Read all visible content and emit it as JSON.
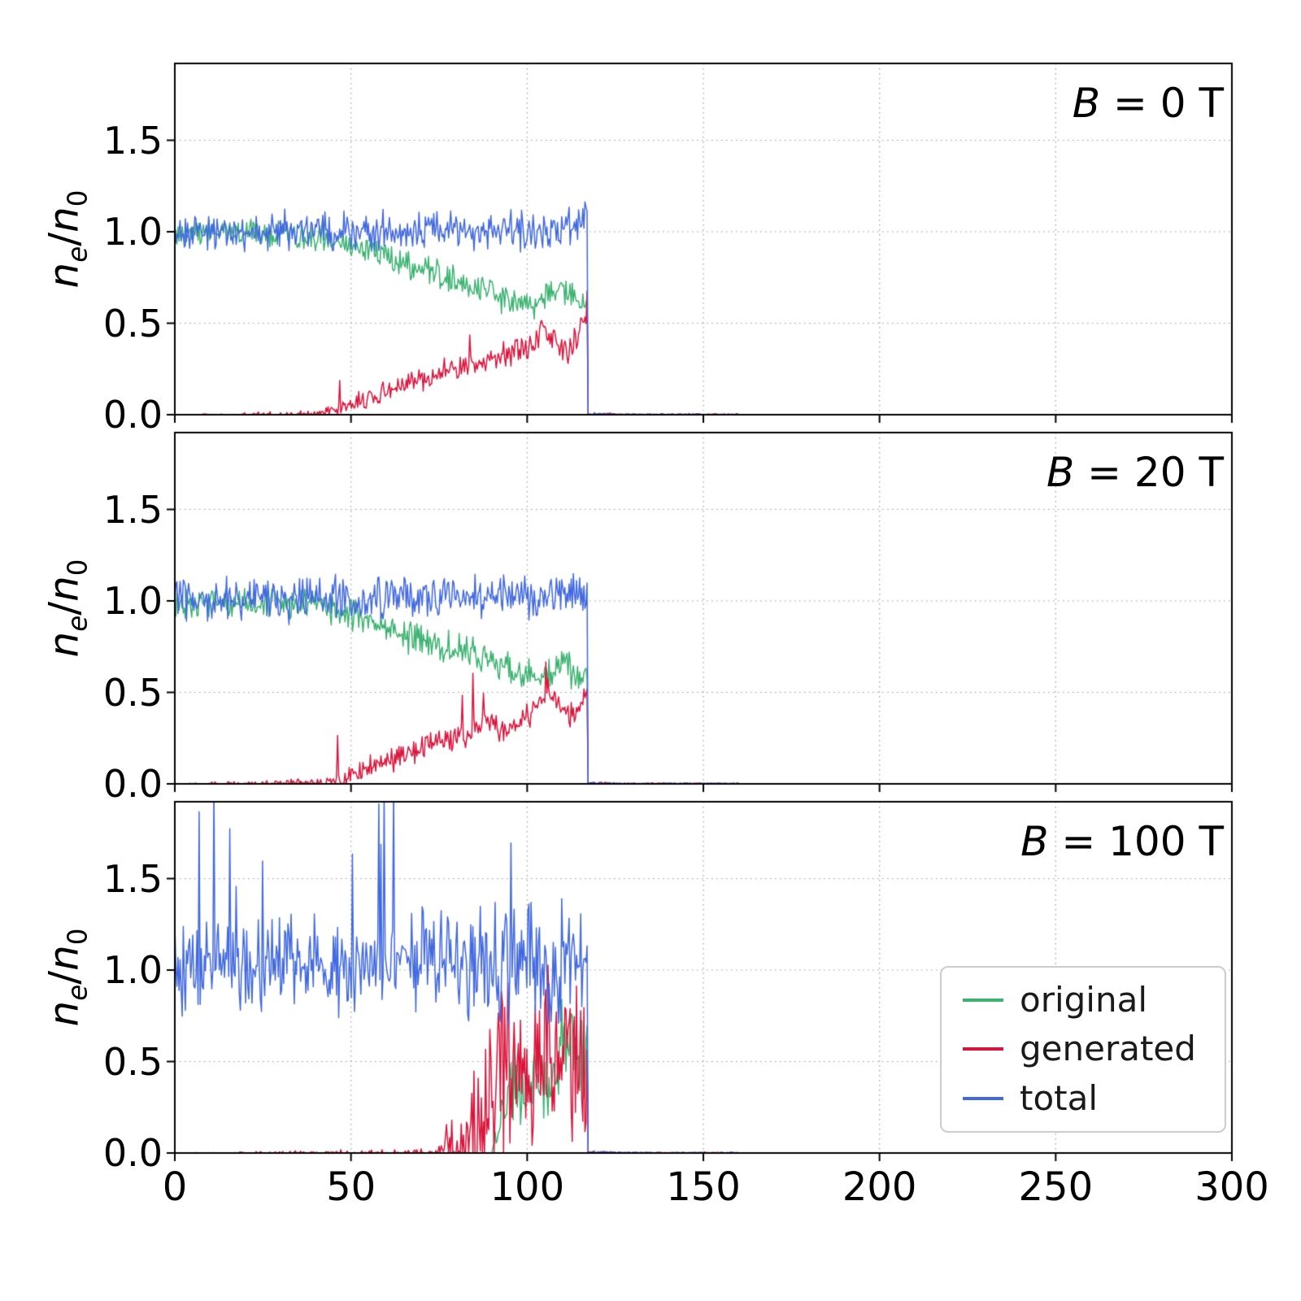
{
  "figure": {
    "background": "#ffffff"
  },
  "chart_data": {
    "type": "line",
    "title": "",
    "xlabel": "",
    "ylabel": "n_e/n_0",
    "ylabel_parts": {
      "n1": "n",
      "sub1": "e",
      "slash": "/",
      "n2": "n",
      "sub2": "0"
    },
    "xlim": [
      0,
      300
    ],
    "ylim": [
      0,
      1.92
    ],
    "x_ticks": [
      0,
      50,
      100,
      150,
      200,
      250,
      300
    ],
    "x_tick_labels": [
      "0",
      "50",
      "100",
      "150",
      "200",
      "250",
      "300"
    ],
    "y_ticks": [
      0.0,
      0.5,
      1.0,
      1.5
    ],
    "y_tick_labels": [
      "0.0",
      "0.5",
      "1.0",
      "1.5"
    ],
    "grid": "dotted",
    "cutoff_x": 117,
    "sample_step": 0.3,
    "legend": {
      "position": "lower right",
      "items": [
        {
          "label": "original",
          "color": "#3cb371"
        },
        {
          "label": "generated",
          "color": "#dc143c"
        },
        {
          "label": "total",
          "color": "#4169e1"
        }
      ]
    },
    "panels": [
      {
        "label_symbol": "B",
        "label_rest": " = 0 T",
        "series": [
          {
            "name": "original",
            "color": "#3cb371",
            "seed": 101,
            "tail": false,
            "mean": [
              [
                0,
                1.0
              ],
              [
                30,
                0.99
              ],
              [
                42,
                0.97
              ],
              [
                50,
                0.92
              ],
              [
                58,
                0.87
              ],
              [
                66,
                0.82
              ],
              [
                74,
                0.77
              ],
              [
                82,
                0.72
              ],
              [
                88,
                0.68
              ],
              [
                94,
                0.63
              ],
              [
                100,
                0.6
              ],
              [
                104,
                0.63
              ],
              [
                108,
                0.7
              ],
              [
                112,
                0.66
              ],
              [
                115,
                0.6
              ],
              [
                117,
                0.58
              ]
            ],
            "amp": [
              [
                0,
                0.065
              ],
              [
                117,
                0.065
              ]
            ]
          },
          {
            "name": "generated",
            "color": "#dc143c",
            "seed": 102,
            "tail": true,
            "spike_p": 0.008,
            "spike_h": 0.12,
            "mean": [
              [
                0,
                0
              ],
              [
                38,
                0
              ],
              [
                44,
                0.02
              ],
              [
                50,
                0.06
              ],
              [
                56,
                0.1
              ],
              [
                62,
                0.14
              ],
              [
                68,
                0.18
              ],
              [
                74,
                0.22
              ],
              [
                80,
                0.26
              ],
              [
                86,
                0.28
              ],
              [
                92,
                0.31
              ],
              [
                97,
                0.34
              ],
              [
                102,
                0.4
              ],
              [
                105,
                0.46
              ],
              [
                108,
                0.4
              ],
              [
                111,
                0.34
              ],
              [
                114,
                0.4
              ],
              [
                117,
                0.55
              ]
            ],
            "amp": [
              [
                0,
                0
              ],
              [
                42,
                0.02
              ],
              [
                50,
                0.045
              ],
              [
                117,
                0.06
              ]
            ]
          },
          {
            "name": "total",
            "color": "#4169e1",
            "seed": 103,
            "tail": true,
            "mean": [
              [
                0,
                1.0
              ],
              [
                110,
                1.01
              ],
              [
                115,
                1.04
              ],
              [
                117,
                1.05
              ]
            ],
            "amp": [
              [
                0,
                0.085
              ],
              [
                117,
                0.085
              ]
            ]
          }
        ]
      },
      {
        "label_symbol": "B",
        "label_rest": " = 20 T",
        "series": [
          {
            "name": "original",
            "color": "#3cb371",
            "seed": 201,
            "tail": false,
            "mean": [
              [
                0,
                1.0
              ],
              [
                40,
                0.98
              ],
              [
                48,
                0.94
              ],
              [
                56,
                0.88
              ],
              [
                64,
                0.83
              ],
              [
                72,
                0.78
              ],
              [
                80,
                0.73
              ],
              [
                86,
                0.69
              ],
              [
                92,
                0.65
              ],
              [
                98,
                0.61
              ],
              [
                103,
                0.57
              ],
              [
                107,
                0.63
              ],
              [
                110,
                0.68
              ],
              [
                113,
                0.62
              ],
              [
                117,
                0.57
              ]
            ],
            "amp": [
              [
                0,
                0.07
              ],
              [
                117,
                0.075
              ]
            ]
          },
          {
            "name": "generated",
            "color": "#dc143c",
            "seed": 202,
            "tail": true,
            "spike_p": 0.015,
            "spike_h": 0.22,
            "mean": [
              [
                0,
                0
              ],
              [
                42,
                0
              ],
              [
                47,
                0.03
              ],
              [
                54,
                0.08
              ],
              [
                60,
                0.12
              ],
              [
                66,
                0.16
              ],
              [
                72,
                0.21
              ],
              [
                78,
                0.25
              ],
              [
                84,
                0.28
              ],
              [
                88,
                0.33
              ],
              [
                93,
                0.3
              ],
              [
                98,
                0.33
              ],
              [
                103,
                0.44
              ],
              [
                106,
                0.5
              ],
              [
                109,
                0.42
              ],
              [
                112,
                0.36
              ],
              [
                115,
                0.42
              ],
              [
                117,
                0.55
              ]
            ],
            "amp": [
              [
                0,
                0
              ],
              [
                45,
                0.03
              ],
              [
                55,
                0.05
              ],
              [
                117,
                0.065
              ]
            ]
          },
          {
            "name": "total",
            "color": "#4169e1",
            "seed": 203,
            "tail": true,
            "mean": [
              [
                0,
                1.0
              ],
              [
                117,
                1.03
              ]
            ],
            "amp": [
              [
                0,
                0.095
              ],
              [
                117,
                0.095
              ]
            ]
          }
        ]
      },
      {
        "label_symbol": "B",
        "label_rest": " = 100 T",
        "series": [
          {
            "name": "original",
            "color": "#3cb371",
            "seed": 301,
            "tail": false,
            "mean": [
              [
                0,
                0
              ],
              [
                90,
                0
              ],
              [
                93,
                0.22
              ],
              [
                96,
                0.34
              ],
              [
                99,
                0.3
              ],
              [
                102,
                0.35
              ],
              [
                105,
                0.28
              ],
              [
                108,
                0.48
              ],
              [
                111,
                0.56
              ],
              [
                114,
                0.5
              ],
              [
                117,
                0.42
              ]
            ],
            "amp": [
              [
                0,
                0
              ],
              [
                90,
                0
              ],
              [
                93,
                0.16
              ],
              [
                96,
                0.2
              ],
              [
                117,
                0.24
              ]
            ]
          },
          {
            "name": "generated",
            "color": "#dc143c",
            "seed": 302,
            "tail": true,
            "spike_p": 0.02,
            "spike_h": 0.3,
            "mean": [
              [
                0,
                0
              ],
              [
                73,
                0
              ],
              [
                76,
                0.01
              ],
              [
                80,
                0.04
              ],
              [
                84,
                0.1
              ],
              [
                88,
                0.28
              ],
              [
                92,
                0.45
              ],
              [
                96,
                0.52
              ],
              [
                100,
                0.42
              ],
              [
                104,
                0.55
              ],
              [
                108,
                0.48
              ],
              [
                112,
                0.55
              ],
              [
                117,
                0.48
              ]
            ],
            "amp": [
              [
                0,
                0
              ],
              [
                74,
                0.02
              ],
              [
                79,
                0.18
              ],
              [
                85,
                0.4
              ],
              [
                92,
                0.42
              ],
              [
                100,
                0.35
              ],
              [
                117,
                0.38
              ]
            ]
          },
          {
            "name": "total",
            "color": "#4169e1",
            "seed": 303,
            "tail": true,
            "spike_p": 0.035,
            "spike_h": 0.7,
            "mean": [
              [
                0,
                1.02
              ],
              [
                117,
                1.04
              ]
            ],
            "amp": [
              [
                0,
                0.2
              ],
              [
                117,
                0.24
              ]
            ]
          }
        ]
      }
    ]
  }
}
